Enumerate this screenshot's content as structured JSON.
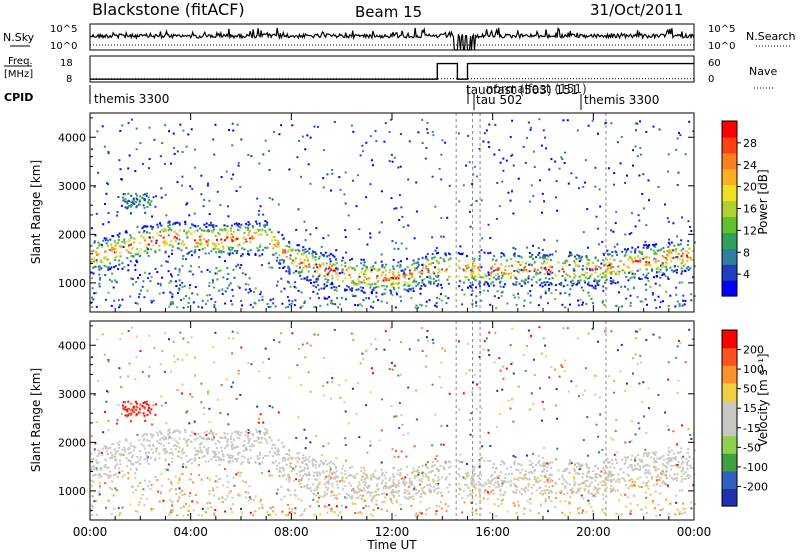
{
  "header": {
    "station": "Blackstone (fitACF)",
    "beam": "Beam 15",
    "date": "31/Oct/2011"
  },
  "labels": {
    "nsky": "N.Sky",
    "nsearch": "N.Search",
    "freq_line1": "Freq.",
    "freq_line2": "[MHz]",
    "nave": "Nave",
    "cpid": "CPID",
    "time_axis": "Time UT",
    "range_axis": "Slant Range [km]"
  },
  "chart_data": [
    {
      "type": "line",
      "name": "noise",
      "left_ticks": [
        "10^5",
        "10^0"
      ],
      "right_ticks": [
        "10^5",
        "10^0"
      ],
      "series": [
        {
          "name": "N.Sky",
          "style": "solid",
          "level": "near 10^2 with spikes"
        },
        {
          "name": "N.Search",
          "style": "dotted"
        }
      ]
    },
    {
      "type": "line",
      "name": "frequency",
      "left_ticks": [
        "18",
        "8"
      ],
      "right_ticks": [
        "60",
        "0"
      ],
      "series": [
        {
          "name": "Freq.",
          "style": "solid",
          "points": [
            [
              0,
              10
            ],
            [
              13.8,
              10
            ],
            [
              13.8,
              16.5
            ],
            [
              14.6,
              16.5
            ],
            [
              14.6,
              10
            ],
            [
              15.0,
              10
            ],
            [
              15.0,
              16.5
            ],
            [
              24,
              16.5
            ]
          ]
        },
        {
          "name": "Nave",
          "style": "dotted",
          "level": "near 10"
        }
      ]
    },
    {
      "type": "table",
      "name": "cpid",
      "segments": [
        {
          "label": "themis 3300",
          "start": 0
        },
        {
          "label": "tauofast (503) 151",
          "start": 15.1
        },
        {
          "label": "normalfast (151)",
          "start": 15.4
        },
        {
          "label": "tau 502",
          "start": 15.3
        },
        {
          "label": "themis 3300",
          "start": 20.5
        }
      ]
    },
    {
      "type": "heatmap",
      "name": "power",
      "xlim": [
        0,
        24
      ],
      "ylim": [
        400,
        4500
      ],
      "y_ticks": [
        1000,
        2000,
        3000,
        4000
      ],
      "colorbar": {
        "label": "Power [dB]",
        "ticks": [
          "28",
          "24",
          "20",
          "16",
          "12",
          "8",
          "4"
        ],
        "colors": [
          "#0000ff",
          "#1f3fbf",
          "#2f7f9f",
          "#2fa060",
          "#60c030",
          "#b0d030",
          "#f0e020",
          "#ffb020",
          "#ff8020",
          "#ff4010",
          "#ff0000"
        ]
      }
    },
    {
      "type": "heatmap",
      "name": "velocity",
      "xlim": [
        0,
        24
      ],
      "ylim": [
        400,
        4500
      ],
      "y_ticks": [
        1000,
        2000,
        3000,
        4000
      ],
      "colorbar": {
        "label": "Velocity [m s⁻¹]",
        "ticks": [
          "200",
          "100",
          "50",
          "15",
          "-15",
          "-50",
          "-100",
          "-200"
        ],
        "colors": [
          "#2030b0",
          "#3060c0",
          "#40a040",
          "#90d050",
          "#c8c8c0",
          "#c8c8c0",
          "#f0d040",
          "#ff9030",
          "#ff5020",
          "#ff0000"
        ]
      }
    },
    {
      "type": "scatter",
      "name": "time_axis",
      "x_tick_labels": [
        "00:00",
        "04:00",
        "08:00",
        "12:00",
        "16:00",
        "20:00",
        "00:00"
      ]
    }
  ]
}
